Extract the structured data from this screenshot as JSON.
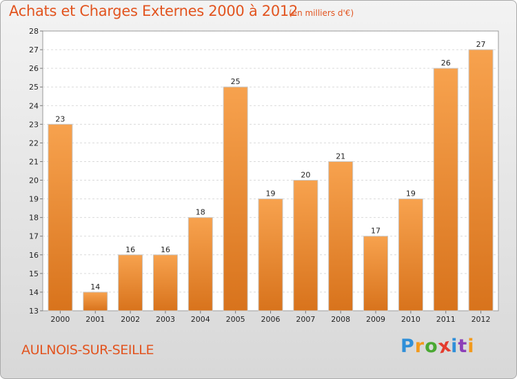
{
  "header": {
    "title": "Achats et Charges Externes 2000 à 2012",
    "subtitle": "(en milliers d'€)"
  },
  "footer": {
    "commune": "AULNOIS-SUR-SEILLE",
    "logo_letters": [
      "P",
      "r",
      "o",
      "x",
      "i",
      "t",
      "i"
    ],
    "logo_colors": [
      "#2f8fd8",
      "#f29a1d",
      "#4aa832",
      "#e43c2e",
      "#2f8fd8",
      "#8c3fb8",
      "#f29a1d"
    ]
  },
  "chart_data": {
    "type": "bar",
    "title": "Achats et Charges Externes 2000 à 2012",
    "subtitle": "(en milliers d'€)",
    "categories": [
      "2000",
      "2001",
      "2002",
      "2003",
      "2004",
      "2005",
      "2006",
      "2007",
      "2008",
      "2009",
      "2010",
      "2011",
      "2012"
    ],
    "values": [
      23,
      14,
      16,
      16,
      18,
      25,
      19,
      20,
      21,
      17,
      19,
      26,
      27
    ],
    "xlabel": "",
    "ylabel": "",
    "ylim": [
      13,
      28
    ],
    "yticks": [
      13,
      14,
      15,
      16,
      17,
      18,
      19,
      20,
      21,
      22,
      23,
      24,
      25,
      26,
      27,
      28
    ],
    "grid": true,
    "legend": "none",
    "bar_color": "#f0913a"
  }
}
